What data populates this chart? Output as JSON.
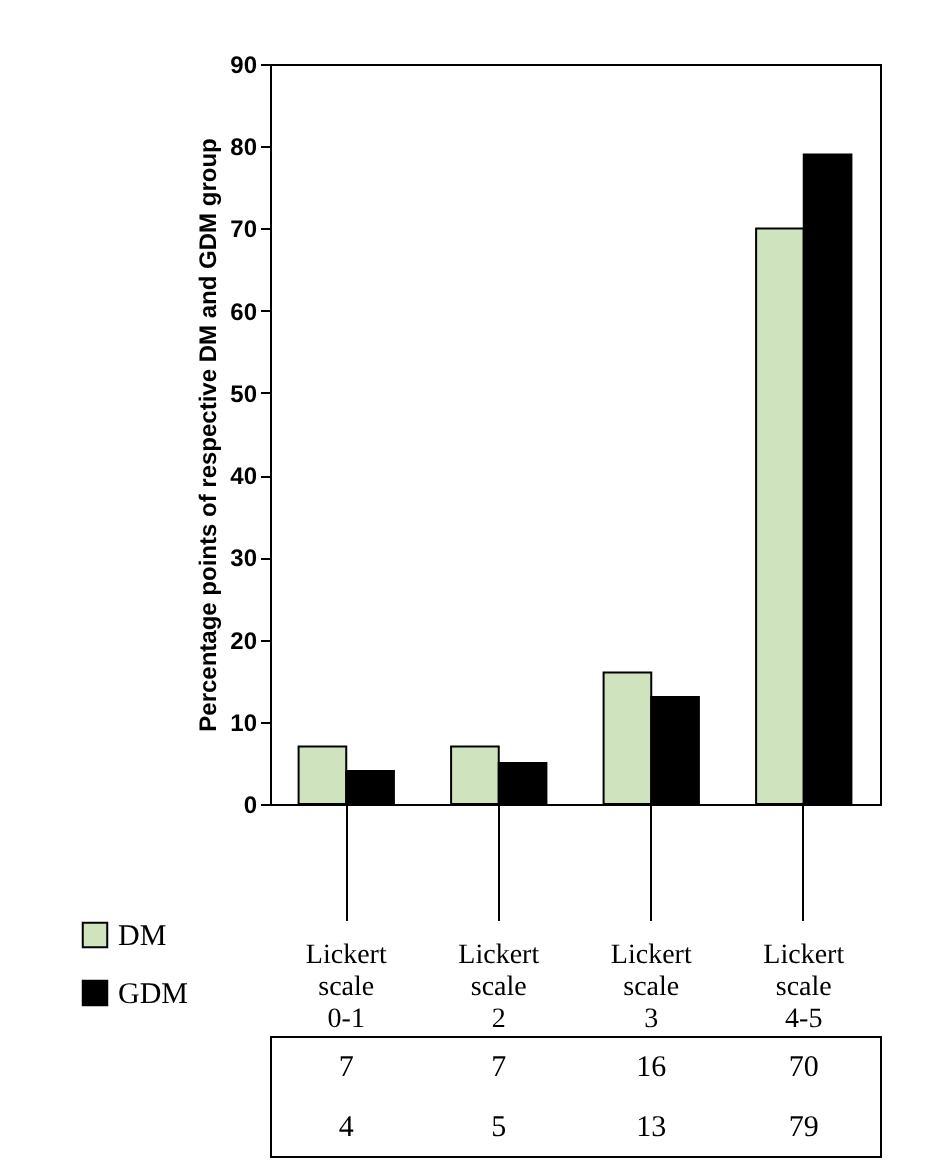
{
  "chart_data": {
    "type": "bar",
    "ylabel": "Percentage points of respective DM and GDM group",
    "categories": [
      "Lickert scale 0-1",
      "Lickert scale 2",
      "Lickert scale 3",
      "Lickert scale 4-5"
    ],
    "series": [
      {
        "name": "DM",
        "color": "#cfe3bf",
        "values": [
          7,
          7,
          16,
          70
        ]
      },
      {
        "name": "GDM",
        "color": "#000000",
        "values": [
          4,
          5,
          13,
          79
        ]
      }
    ],
    "ylim": [
      0,
      90
    ],
    "yticks": [
      0,
      10,
      20,
      30,
      40,
      50,
      60,
      70,
      80,
      90
    ],
    "grid": false,
    "legend": "bottom left",
    "data_labels": true
  }
}
